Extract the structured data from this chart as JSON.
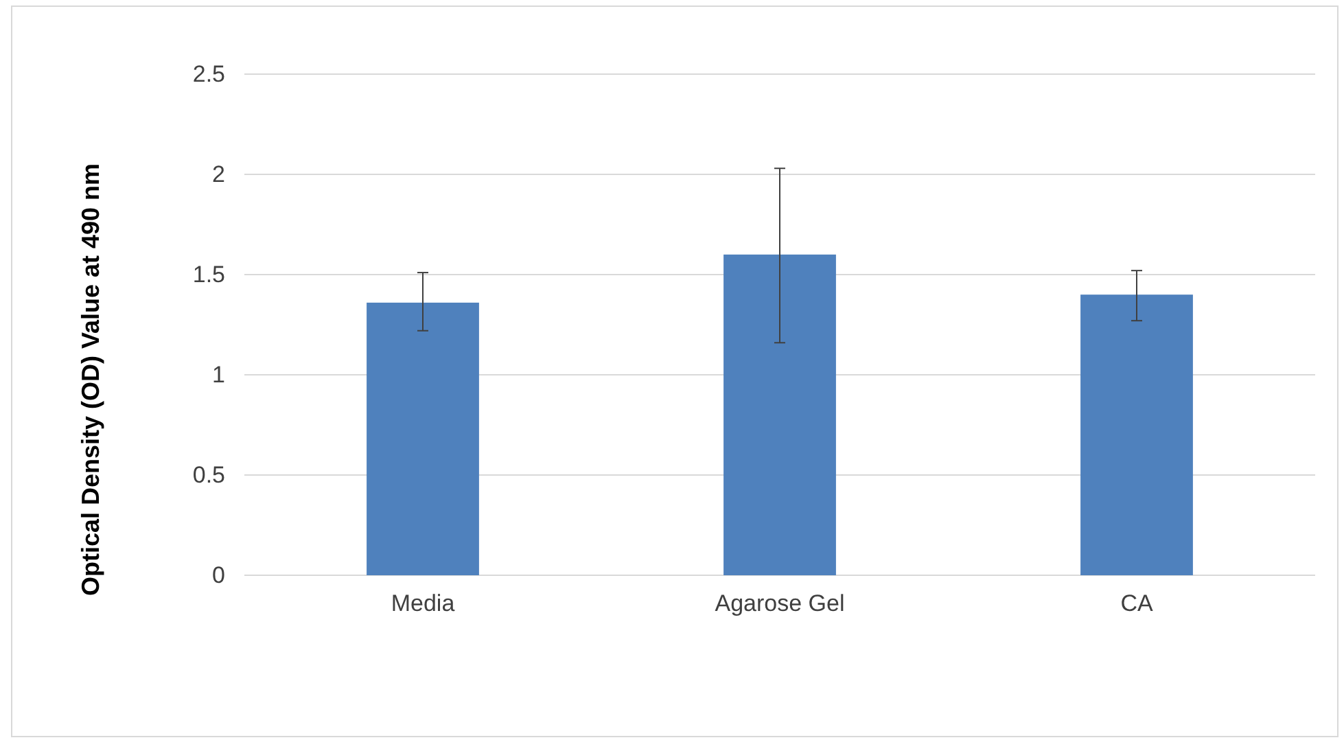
{
  "chart_data": {
    "type": "bar",
    "ylabel": "Optical Density (OD) Value at 490 nm",
    "categories": [
      "Media",
      "Agarose Gel",
      "CA"
    ],
    "values": [
      1.36,
      1.6,
      1.4
    ],
    "errors": [
      [
        1.22,
        1.51
      ],
      [
        1.16,
        2.03
      ],
      [
        1.27,
        1.52
      ]
    ],
    "color": "#4f81bd",
    "ylim": [
      0,
      2.5
    ],
    "yticks": [
      0,
      {
        "value": 0.5,
        "label": "0.5"
      },
      1,
      {
        "value": 1.5,
        "label": "1.5"
      },
      2,
      {
        "value": 2.5,
        "label": "2.5"
      }
    ],
    "grid": "y"
  }
}
